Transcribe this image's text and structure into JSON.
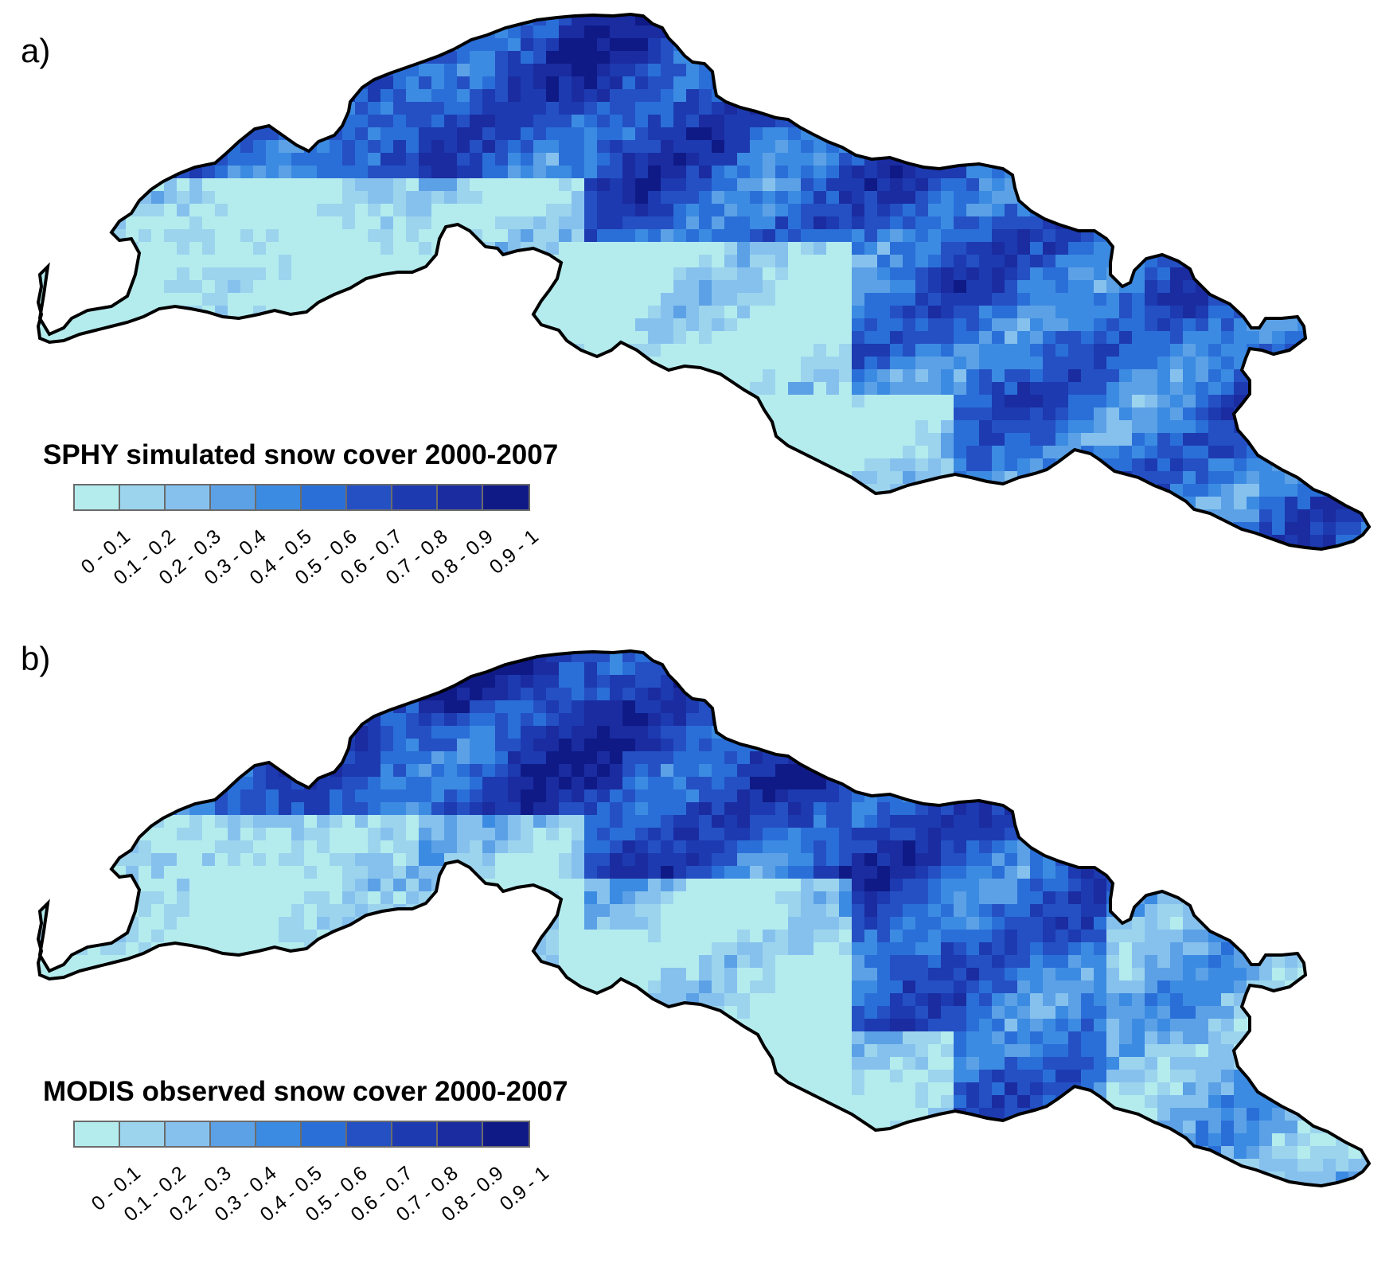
{
  "panels": [
    {
      "id": "a",
      "label": "a)",
      "legend_title": "SPHY simulated snow cover 2000-2007"
    },
    {
      "id": "b",
      "label": "b)",
      "legend_title": "MODIS observed snow cover 2000-2007"
    }
  ],
  "legend": {
    "classes": [
      "0 - 0.1",
      "0.1 - 0.2",
      "0.2 - 0.3",
      "0.3 - 0.4",
      "0.4 - 0.5",
      "0.5 - 0.6",
      "0.6 - 0.7",
      "0.7 - 0.8",
      "0.8 - 0.9",
      "0.9 - 1"
    ],
    "colors": [
      "#b4ecee",
      "#9cd4ee",
      "#86c1ee",
      "#5ca1e6",
      "#3c8be2",
      "#2a6fd8",
      "#2450c4",
      "#1d3ab0",
      "#1a2ca0",
      "#0f1a86"
    ]
  }
}
